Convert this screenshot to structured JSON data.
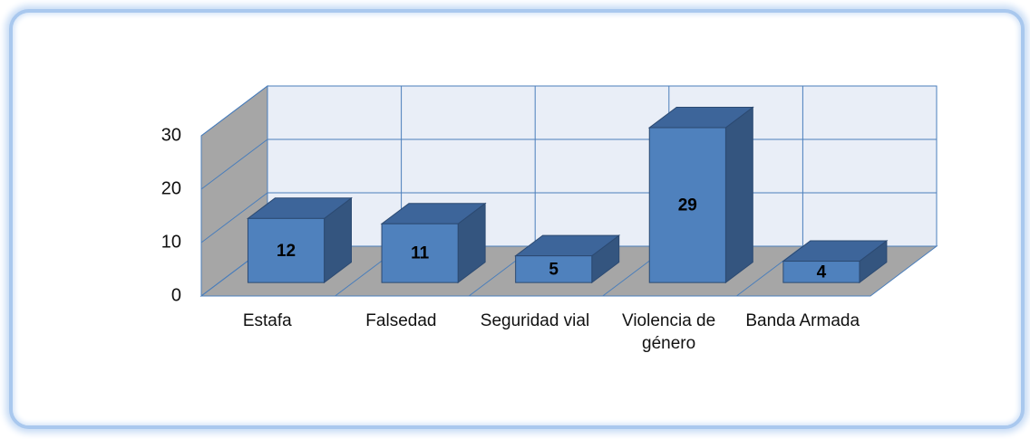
{
  "chart_data": {
    "type": "bar3d",
    "categories": [
      "Estafa",
      "Falsedad",
      "Seguridad vial",
      "Violencia de género",
      "Banda Armada"
    ],
    "values": [
      12,
      11,
      5,
      29,
      4
    ],
    "color": "#4f81bd",
    "ylim": [
      0,
      30
    ],
    "yticks": [
      0,
      10,
      20,
      30
    ],
    "grid": true
  }
}
